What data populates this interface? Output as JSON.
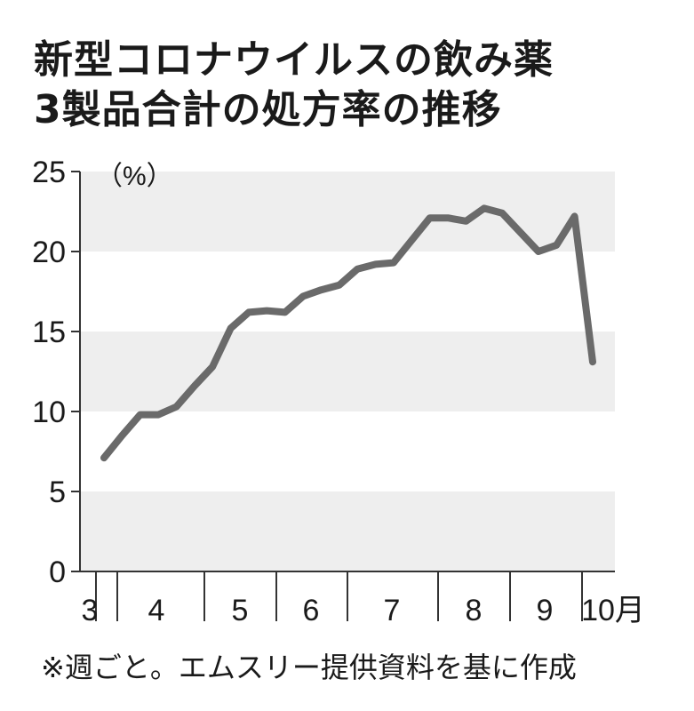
{
  "chart_data": {
    "type": "line",
    "title_line1": "新型コロナウイルスの飲み薬",
    "title_line2": "3製品合計の処方率の推移",
    "unit": "（%）",
    "ylim": [
      0,
      25
    ],
    "yticks": [
      "0",
      "5",
      "10",
      "15",
      "20",
      "25"
    ],
    "x_month_labels": [
      "3",
      "4",
      "5",
      "6",
      "7",
      "8",
      "9",
      "10月"
    ],
    "note": "※週ごと。エムスリー提供資料を基に作成",
    "grid": "alternating horizontal bands",
    "colors": {
      "line": "#6a6a6a",
      "band": "#eeeeee",
      "axis": "#333333"
    },
    "series": [
      {
        "values": [
          7.1,
          8.5,
          9.8,
          9.8,
          10.3,
          11.6,
          12.8,
          15.2,
          16.2,
          16.3,
          16.2,
          17.2,
          17.6,
          17.9,
          18.9,
          19.2,
          19.3,
          20.7,
          22.1,
          22.1,
          21.9,
          22.7,
          22.4,
          21.2,
          20.0,
          20.4,
          22.2,
          13.1
        ]
      }
    ]
  }
}
